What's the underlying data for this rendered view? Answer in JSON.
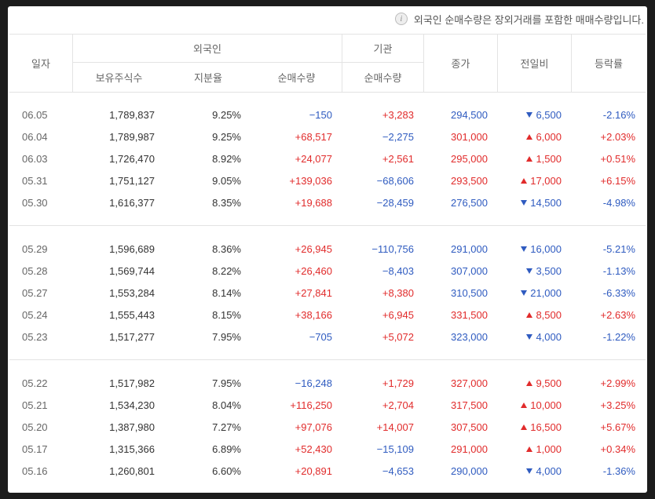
{
  "note": "외국인 순매수량은 장외거래를 포함한 매매수량입니다.",
  "table": {
    "header": {
      "date": "일자",
      "foreign": "외국인",
      "institution": "기관",
      "shares": "보유주식수",
      "ratio": "지분율",
      "foreign_net": "순매수량",
      "institution_net": "순매수량",
      "close": "종가",
      "change": "전일비",
      "rate": "등락률"
    },
    "groups": [
      [
        [
          "06.05",
          "1,789,837",
          "9.25%",
          "−150",
          "+3,283",
          "294,500",
          "6,500",
          "-2.16%"
        ],
        [
          "06.04",
          "1,789,987",
          "9.25%",
          "+68,517",
          "−2,275",
          "301,000",
          "6,000",
          "+2.03%"
        ],
        [
          "06.03",
          "1,726,470",
          "8.92%",
          "+24,077",
          "+2,561",
          "295,000",
          "1,500",
          "+0.51%"
        ],
        [
          "05.31",
          "1,751,127",
          "9.05%",
          "+139,036",
          "−68,606",
          "293,500",
          "17,000",
          "+6.15%"
        ],
        [
          "05.30",
          "1,616,377",
          "8.35%",
          "+19,688",
          "−28,459",
          "276,500",
          "14,500",
          "-4.98%"
        ]
      ],
      [
        [
          "05.29",
          "1,596,689",
          "8.36%",
          "+26,945",
          "−110,756",
          "291,000",
          "16,000",
          "-5.21%"
        ],
        [
          "05.28",
          "1,569,744",
          "8.22%",
          "+26,460",
          "−8,403",
          "307,000",
          "3,500",
          "-1.13%"
        ],
        [
          "05.27",
          "1,553,284",
          "8.14%",
          "+27,841",
          "+8,380",
          "310,500",
          "21,000",
          "-6.33%"
        ],
        [
          "05.24",
          "1,555,443",
          "8.15%",
          "+38,166",
          "+6,945",
          "331,500",
          "8,500",
          "+2.63%"
        ],
        [
          "05.23",
          "1,517,277",
          "7.95%",
          "−705",
          "+5,072",
          "323,000",
          "4,000",
          "-1.22%"
        ]
      ],
      [
        [
          "05.22",
          "1,517,982",
          "7.95%",
          "−16,248",
          "+1,729",
          "327,000",
          "9,500",
          "+2.99%"
        ],
        [
          "05.21",
          "1,534,230",
          "8.04%",
          "+116,250",
          "+2,704",
          "317,500",
          "10,000",
          "+3.25%"
        ],
        [
          "05.20",
          "1,387,980",
          "7.27%",
          "+97,076",
          "+14,007",
          "307,500",
          "16,500",
          "+5.67%"
        ],
        [
          "05.17",
          "1,315,366",
          "6.89%",
          "+52,430",
          "−15,109",
          "291,000",
          "1,000",
          "+0.34%"
        ],
        [
          "05.16",
          "1,260,801",
          "6.60%",
          "+20,891",
          "−4,653",
          "290,000",
          "4,000",
          "-1.36%"
        ]
      ]
    ]
  }
}
